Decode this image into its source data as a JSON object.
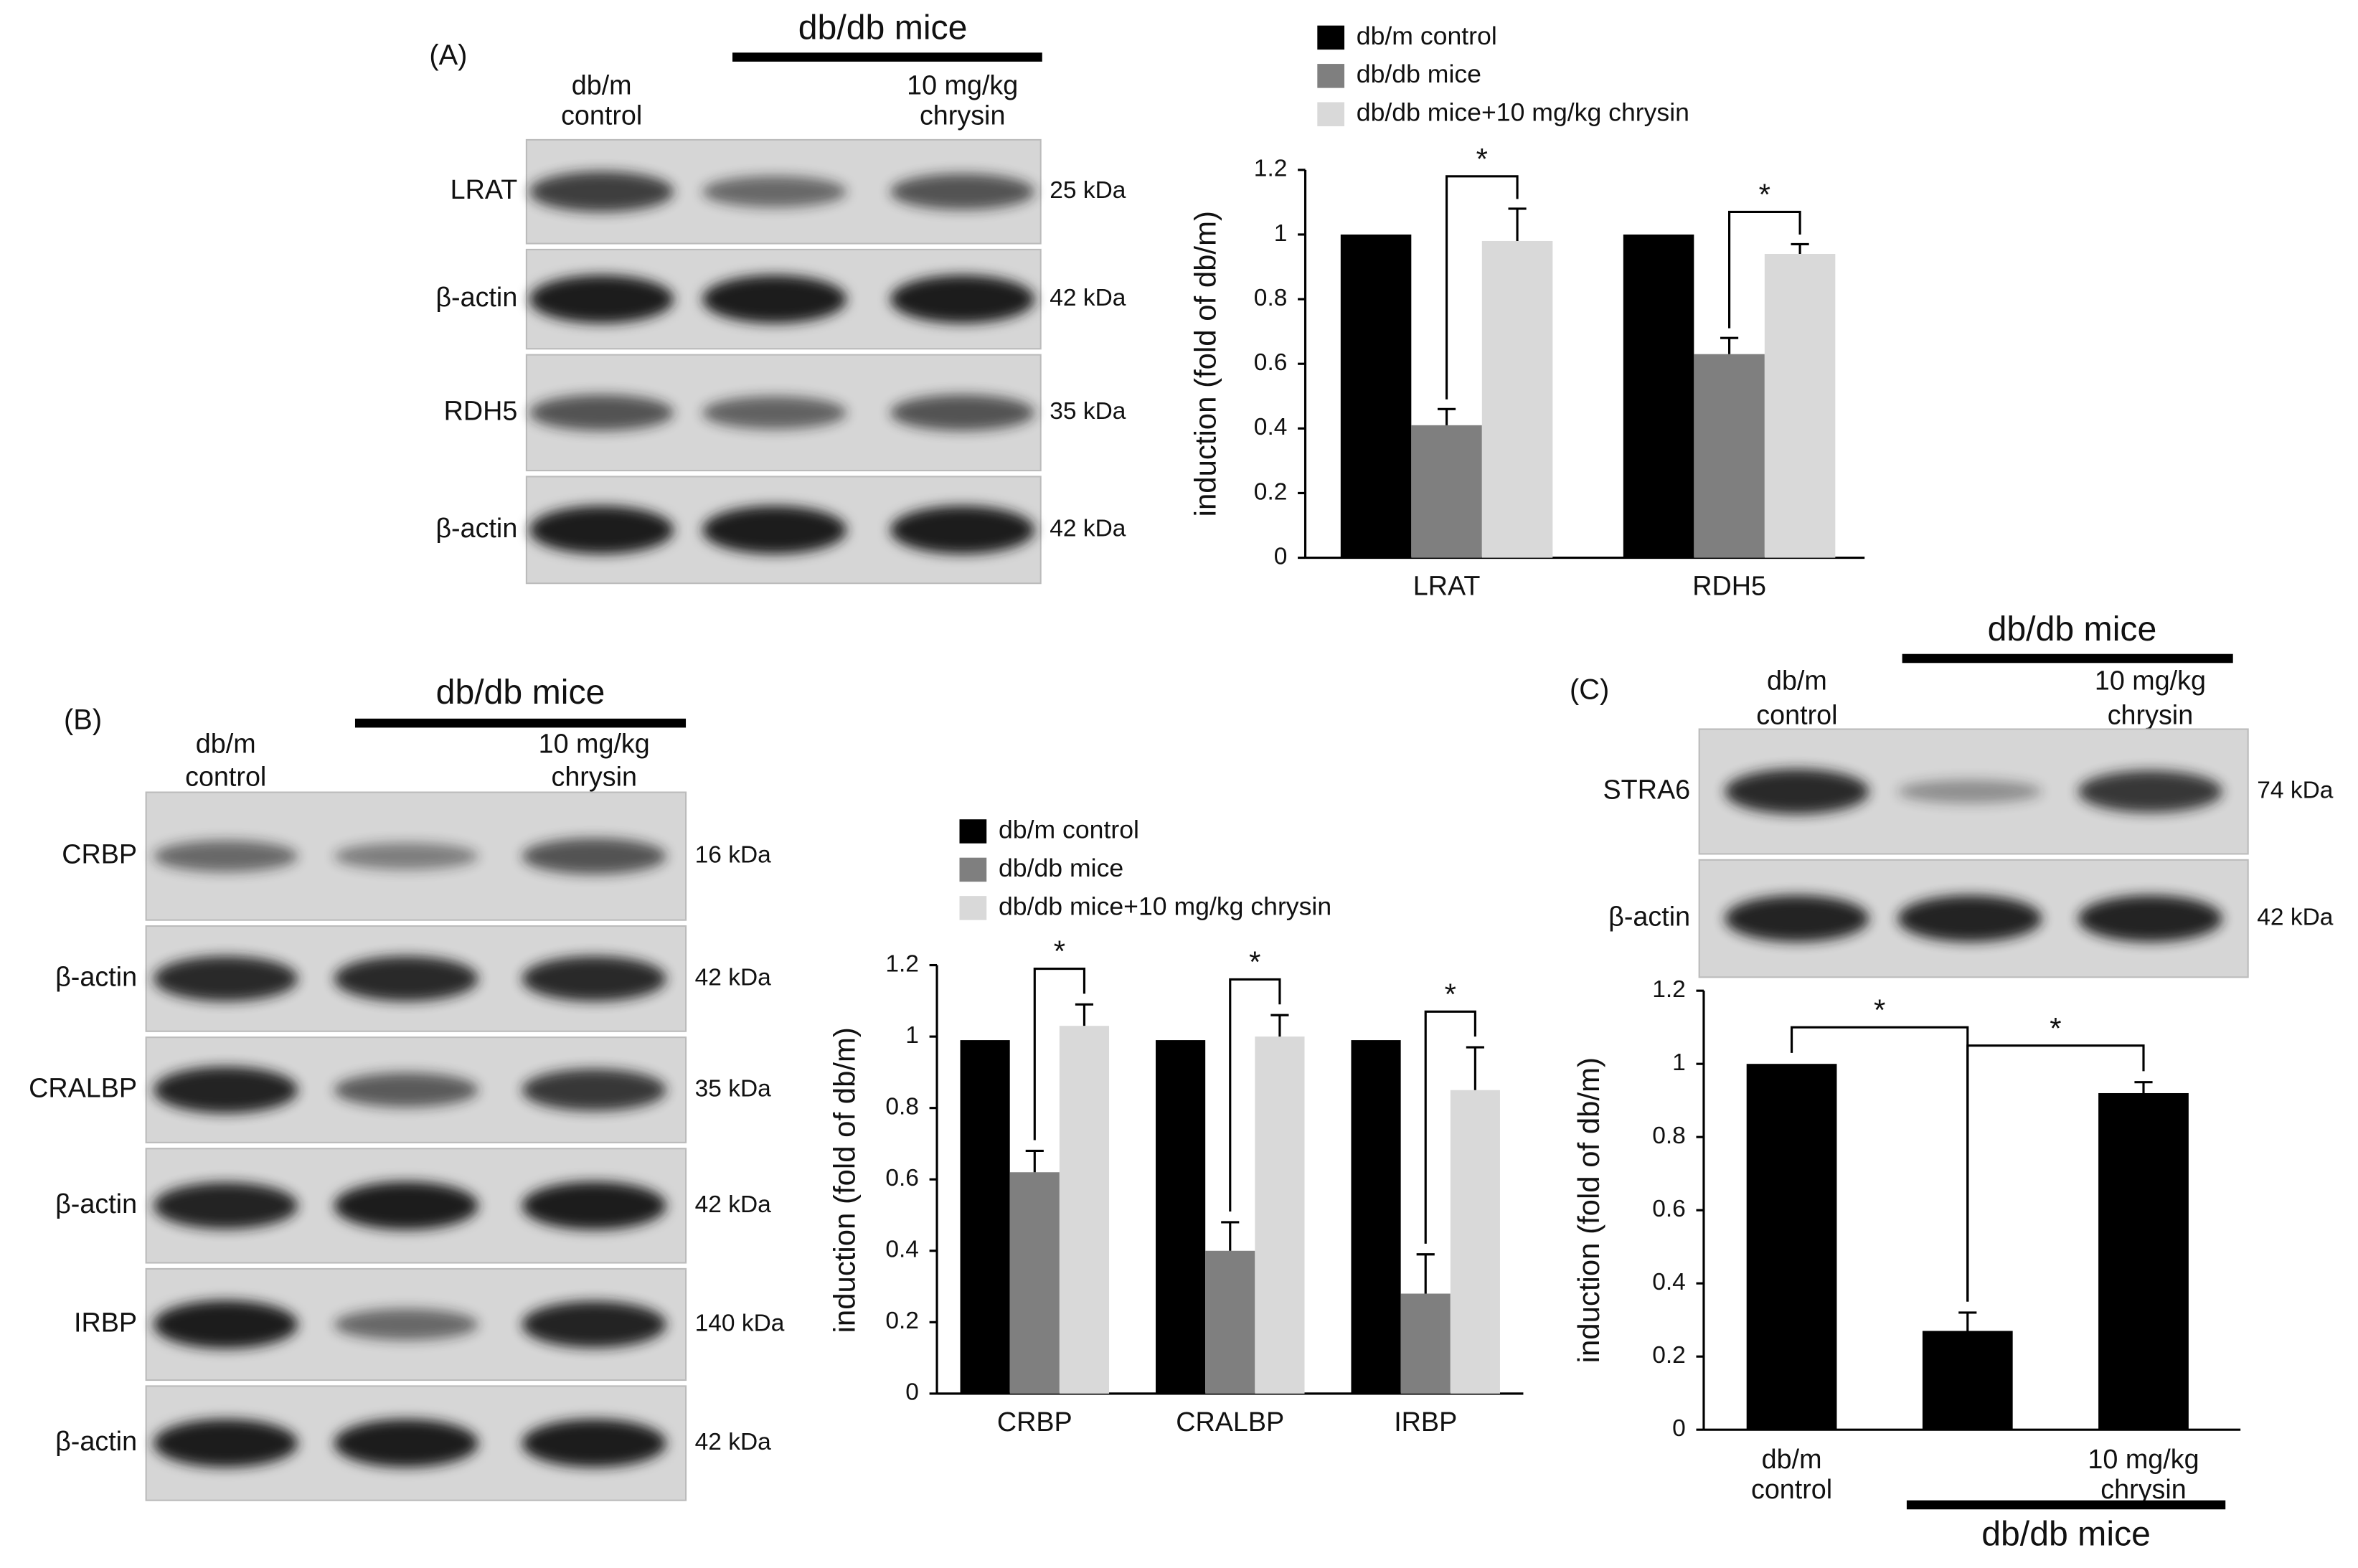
{
  "blots": [
    {
      "panel": "(A)",
      "group": "db/db mice",
      "lanes": [
        [
          "db/m",
          "control"
        ],
        null,
        [
          "10 mg/kg",
          "chrysin"
        ]
      ],
      "rows": [
        {
          "name": "LRAT",
          "size": "25 kDa"
        },
        {
          "name": "β-actin",
          "size": "42 kDa"
        },
        {
          "name": "RDH5",
          "size": "35 kDa"
        },
        {
          "name": "β-actin",
          "size": "42 kDa"
        }
      ]
    },
    {
      "panel": "(B)",
      "group": "db/db mice",
      "lanes": [
        [
          "db/m",
          "control"
        ],
        null,
        [
          "10 mg/kg",
          "chrysin"
        ]
      ],
      "rows": [
        {
          "name": "CRBP",
          "size": "16 kDa"
        },
        {
          "name": "β-actin",
          "size": "42 kDa"
        },
        {
          "name": "CRALBP",
          "size": "35 kDa"
        },
        {
          "name": "β-actin",
          "size": "42 kDa"
        },
        {
          "name": "IRBP",
          "size": "140 kDa"
        },
        {
          "name": "β-actin",
          "size": "42 kDa"
        }
      ]
    },
    {
      "panel": "(C)",
      "group": "db/db mice",
      "lanes": [
        [
          "db/m",
          "control"
        ],
        null,
        [
          "10 mg/kg",
          "chrysin"
        ]
      ],
      "rows": [
        {
          "name": "STRA6",
          "size": "74 kDa"
        },
        {
          "name": "β-actin",
          "size": "42 kDa"
        }
      ]
    }
  ],
  "chart_data": [
    {
      "type": "bar",
      "ylabel": "induction (fold of db/m)",
      "categories": [
        "LRAT",
        "RDH5"
      ],
      "series": [
        {
          "name": "db/m control",
          "color": "#000000",
          "values": [
            1,
            1
          ]
        },
        {
          "name": "db/db mice",
          "color": "#7f7f7f",
          "values": [
            0.41,
            0.63
          ],
          "errors": [
            0.05,
            0.05
          ]
        },
        {
          "name": "db/db mice+10 mg/kg chrysin",
          "color": "#d9d9d9",
          "values": [
            0.98,
            0.94
          ],
          "errors": [
            0.1,
            0.03
          ]
        }
      ],
      "significance": [
        "*",
        "*"
      ],
      "ylim": [
        0,
        1.2
      ],
      "yticks": [
        0,
        0.2,
        0.4,
        0.6,
        0.8,
        1,
        1.2
      ]
    },
    {
      "type": "bar",
      "ylabel": "induction (fold of db/m)",
      "categories": [
        "CRBP",
        "CRALBP",
        "IRBP"
      ],
      "series": [
        {
          "name": "db/m control",
          "color": "#000000",
          "values": [
            0.99,
            0.99,
            0.99
          ]
        },
        {
          "name": "db/db mice",
          "color": "#7f7f7f",
          "values": [
            0.62,
            0.4,
            0.28
          ],
          "errors": [
            0.06,
            0.08,
            0.11
          ]
        },
        {
          "name": "db/db mice+10 mg/kg chrysin",
          "color": "#d9d9d9",
          "values": [
            1.03,
            1.0,
            0.85
          ],
          "errors": [
            0.06,
            0.06,
            0.12
          ]
        }
      ],
      "significance": [
        "*",
        "*",
        "*"
      ],
      "ylim": [
        0,
        1.2
      ],
      "yticks": [
        0,
        0.2,
        0.4,
        0.6,
        0.8,
        1,
        1.2
      ]
    },
    {
      "type": "bar",
      "ylabel": "induction (fold of db/m)",
      "categories": [
        [
          "db/m",
          "control"
        ],
        null,
        [
          "10 mg/kg",
          "chrysin"
        ]
      ],
      "group_label": "db/db mice",
      "series": [
        {
          "color": "#000000",
          "values": [
            1,
            0.27,
            0.92
          ],
          "errors": [
            null,
            0.05,
            0.03
          ]
        }
      ],
      "significance": [
        "*",
        "*"
      ],
      "ylim": [
        0,
        1.2
      ],
      "yticks": [
        0,
        0.2,
        0.4,
        0.6,
        0.8,
        1,
        1.2
      ]
    }
  ]
}
